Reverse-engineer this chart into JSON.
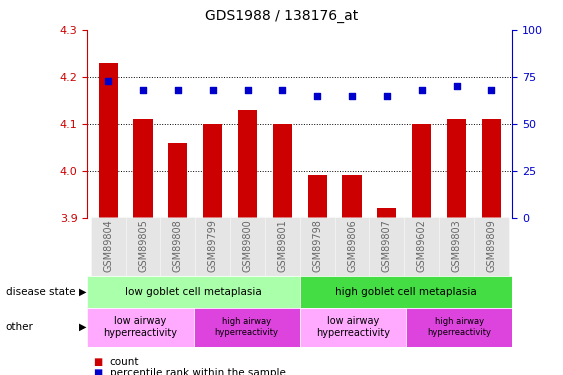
{
  "title": "GDS1988 / 138176_at",
  "samples": [
    "GSM89804",
    "GSM89805",
    "GSM89808",
    "GSM89799",
    "GSM89800",
    "GSM89801",
    "GSM89798",
    "GSM89806",
    "GSM89807",
    "GSM89602",
    "GSM89803",
    "GSM89809"
  ],
  "bar_values": [
    4.23,
    4.11,
    4.06,
    4.1,
    4.13,
    4.1,
    3.99,
    3.99,
    3.92,
    4.1,
    4.11,
    4.11
  ],
  "percentile_values": [
    73,
    68,
    68,
    68,
    68,
    68,
    65,
    65,
    65,
    68,
    70,
    68
  ],
  "bar_color": "#cc0000",
  "percentile_color": "#0000cc",
  "ylim_left": [
    3.9,
    4.3
  ],
  "ylim_right": [
    0,
    100
  ],
  "yticks_left": [
    3.9,
    4.0,
    4.1,
    4.2,
    4.3
  ],
  "yticks_right": [
    0,
    25,
    50,
    75,
    100
  ],
  "grid_values": [
    4.0,
    4.1,
    4.2
  ],
  "disease_state_groups": [
    {
      "label": "low goblet cell metaplasia",
      "start": 0,
      "end": 6,
      "color": "#aaffaa"
    },
    {
      "label": "high goblet cell metaplasia",
      "start": 6,
      "end": 12,
      "color": "#44dd44"
    }
  ],
  "other_groups": [
    {
      "label": "low airway\nhyperreactivity",
      "start": 0,
      "end": 3,
      "color": "#ffaaff",
      "fontsize": 7
    },
    {
      "label": "high airway\nhyperreactivity",
      "start": 3,
      "end": 6,
      "color": "#dd44dd",
      "fontsize": 6
    },
    {
      "label": "low airway\nhyperreactivity",
      "start": 6,
      "end": 9,
      "color": "#ffaaff",
      "fontsize": 7
    },
    {
      "label": "high airway\nhyperreactivity",
      "start": 9,
      "end": 12,
      "color": "#dd44dd",
      "fontsize": 6
    }
  ],
  "left_axis_color": "#cc0000",
  "right_axis_color": "#0000cc",
  "annotation_disease_state": "disease state",
  "annotation_other": "other",
  "legend_count_label": "count",
  "legend_pct_label": "percentile rank within the sample"
}
